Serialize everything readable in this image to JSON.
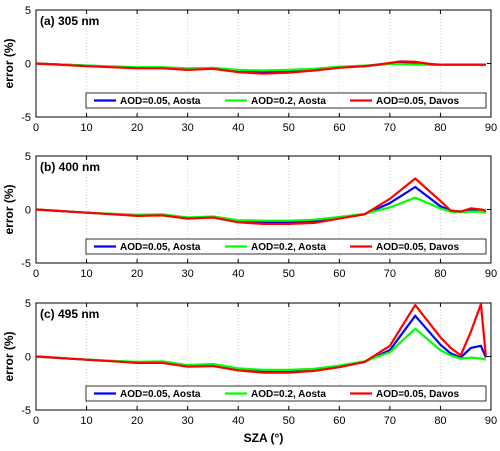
{
  "chart_data": [
    {
      "type": "line",
      "title": "(a) 305 nm",
      "ylabel": "error (%)",
      "xlabel": "",
      "xlim": [
        0,
        90
      ],
      "ylim": [
        -5,
        5
      ],
      "xticks": [
        0,
        10,
        20,
        30,
        40,
        50,
        60,
        70,
        80,
        90
      ],
      "yticks": [
        -5,
        0,
        5
      ],
      "grid": "x-only",
      "legend": "bottom-center",
      "series": [
        {
          "name": "AOD=0.05, Aosta",
          "color": "#0000ff",
          "x": [
            0,
            10,
            20,
            25,
            30,
            35,
            40,
            45,
            50,
            55,
            60,
            65,
            70,
            72,
            75,
            78,
            80,
            85,
            89
          ],
          "y": [
            0,
            -0.2,
            -0.4,
            -0.4,
            -0.5,
            -0.45,
            -0.7,
            -0.8,
            -0.7,
            -0.6,
            -0.35,
            -0.25,
            0,
            0.1,
            0.05,
            -0.1,
            -0.1,
            -0.1,
            -0.1
          ]
        },
        {
          "name": "AOD=0.2, Aosta",
          "color": "#00ff00",
          "x": [
            0,
            10,
            20,
            25,
            30,
            35,
            40,
            45,
            50,
            55,
            60,
            65,
            70,
            72,
            75,
            78,
            80,
            85,
            89
          ],
          "y": [
            0,
            -0.2,
            -0.35,
            -0.35,
            -0.45,
            -0.4,
            -0.6,
            -0.65,
            -0.6,
            -0.5,
            -0.3,
            -0.2,
            -0.05,
            -0.05,
            -0.1,
            -0.1,
            -0.1,
            -0.1,
            -0.1
          ]
        },
        {
          "name": "AOD=0.05, Davos",
          "color": "#ff0000",
          "x": [
            0,
            10,
            20,
            25,
            30,
            35,
            40,
            45,
            50,
            55,
            60,
            65,
            70,
            72,
            75,
            78,
            80,
            85,
            89
          ],
          "y": [
            0,
            -0.25,
            -0.45,
            -0.45,
            -0.6,
            -0.5,
            -0.8,
            -0.95,
            -0.85,
            -0.65,
            -0.4,
            -0.25,
            0.05,
            0.2,
            0.15,
            -0.05,
            -0.1,
            -0.1,
            -0.1
          ]
        }
      ]
    },
    {
      "type": "line",
      "title": "(b) 400 nm",
      "ylabel": "error (%)",
      "xlabel": "",
      "xlim": [
        0,
        90
      ],
      "ylim": [
        -5,
        5
      ],
      "xticks": [
        0,
        10,
        20,
        30,
        40,
        50,
        60,
        70,
        80,
        90
      ],
      "yticks": [
        -5,
        0,
        5
      ],
      "grid": "x-only",
      "legend": "bottom-center",
      "series": [
        {
          "name": "AOD=0.05, Aosta",
          "color": "#0000ff",
          "x": [
            0,
            10,
            20,
            25,
            30,
            35,
            40,
            45,
            50,
            55,
            60,
            65,
            70,
            75,
            80,
            82,
            84,
            86,
            88,
            89
          ],
          "y": [
            0,
            -0.3,
            -0.55,
            -0.5,
            -0.8,
            -0.7,
            -1.1,
            -1.2,
            -1.2,
            -1.1,
            -0.8,
            -0.45,
            0.6,
            2.1,
            0.3,
            -0.1,
            -0.2,
            0,
            -0.1,
            -0.2
          ]
        },
        {
          "name": "AOD=0.2, Aosta",
          "color": "#00ff00",
          "x": [
            0,
            10,
            20,
            25,
            30,
            35,
            40,
            45,
            50,
            55,
            60,
            65,
            70,
            75,
            80,
            82,
            84,
            86,
            88,
            89
          ],
          "y": [
            0,
            -0.3,
            -0.5,
            -0.45,
            -0.75,
            -0.65,
            -1.0,
            -1.05,
            -1.05,
            -0.95,
            -0.7,
            -0.4,
            0.2,
            1.1,
            0.1,
            -0.2,
            -0.25,
            -0.2,
            -0.2,
            -0.3
          ]
        },
        {
          "name": "AOD=0.05, Davos",
          "color": "#ff0000",
          "x": [
            0,
            10,
            20,
            25,
            30,
            35,
            40,
            45,
            50,
            55,
            60,
            65,
            70,
            75,
            80,
            82,
            84,
            86,
            88,
            89
          ],
          "y": [
            0,
            -0.3,
            -0.6,
            -0.55,
            -0.85,
            -0.75,
            -1.2,
            -1.35,
            -1.35,
            -1.25,
            -0.85,
            -0.45,
            1.0,
            2.9,
            0.8,
            -0.1,
            -0.2,
            0.1,
            0.0,
            -0.1
          ]
        }
      ]
    },
    {
      "type": "line",
      "title": "(c) 495 nm",
      "ylabel": "error (%)",
      "xlabel": "SZA (°)",
      "xlim": [
        0,
        90
      ],
      "ylim": [
        -5,
        5
      ],
      "xticks": [
        0,
        10,
        20,
        30,
        40,
        50,
        60,
        70,
        80,
        90
      ],
      "yticks": [
        -5,
        0,
        5
      ],
      "grid": "x-only",
      "legend": "bottom-center",
      "series": [
        {
          "name": "AOD=0.05, Aosta",
          "color": "#0000ff",
          "x": [
            0,
            10,
            20,
            25,
            30,
            35,
            40,
            45,
            50,
            55,
            60,
            65,
            70,
            75,
            80,
            82,
            84,
            86,
            88,
            89
          ],
          "y": [
            0,
            -0.3,
            -0.55,
            -0.55,
            -0.9,
            -0.85,
            -1.2,
            -1.4,
            -1.4,
            -1.3,
            -0.95,
            -0.5,
            0.6,
            3.8,
            1.1,
            0.3,
            -0.1,
            0.8,
            1.0,
            -0.1
          ]
        },
        {
          "name": "AOD=0.2, Aosta",
          "color": "#00ff00",
          "x": [
            0,
            10,
            20,
            25,
            30,
            35,
            40,
            45,
            50,
            55,
            60,
            65,
            70,
            75,
            80,
            82,
            84,
            86,
            88,
            89
          ],
          "y": [
            0,
            -0.3,
            -0.5,
            -0.45,
            -0.8,
            -0.7,
            -1.1,
            -1.25,
            -1.25,
            -1.15,
            -0.85,
            -0.45,
            0.4,
            2.6,
            0.6,
            0.1,
            -0.2,
            -0.1,
            -0.2,
            -0.3
          ]
        },
        {
          "name": "AOD=0.05, Davos",
          "color": "#ff0000",
          "x": [
            0,
            10,
            20,
            25,
            30,
            35,
            40,
            45,
            50,
            55,
            60,
            65,
            70,
            75,
            80,
            82,
            84,
            86,
            88,
            89
          ],
          "y": [
            0,
            -0.3,
            -0.6,
            -0.6,
            -0.95,
            -0.9,
            -1.3,
            -1.5,
            -1.5,
            -1.35,
            -1.0,
            -0.5,
            1.0,
            4.8,
            1.8,
            0.8,
            0.1,
            2.3,
            4.9,
            0.0
          ]
        }
      ]
    }
  ]
}
